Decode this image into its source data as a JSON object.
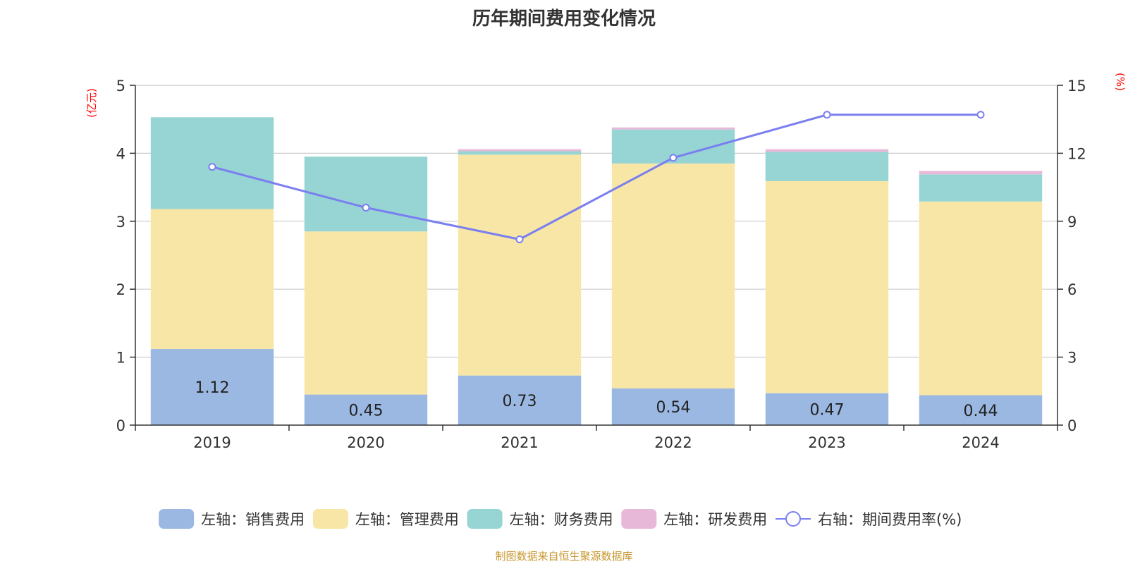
{
  "title": "历年期间费用变化情况",
  "source": "制图数据来自恒生聚源数据库",
  "colors": {
    "sales": "#9BB8E2",
    "admin": "#F7E6A6",
    "finance": "#97D4D4",
    "rd": "#E8B8D9",
    "line": "#7A7FEF",
    "axis_label": "#FF0000",
    "source": "#C7962C"
  },
  "chart_data": {
    "type": "bar",
    "stacked": true,
    "categories": [
      "2019",
      "2020",
      "2021",
      "2022",
      "2023",
      "2024"
    ],
    "series": [
      {
        "name": "左轴：销售费用",
        "key": "sales",
        "axis": "left",
        "values": [
          1.12,
          0.45,
          0.73,
          0.54,
          0.47,
          0.44
        ],
        "show_labels": true
      },
      {
        "name": "左轴：管理费用",
        "key": "admin",
        "axis": "left",
        "values": [
          2.06,
          2.4,
          3.25,
          3.31,
          3.12,
          2.85
        ]
      },
      {
        "name": "左轴：财务费用",
        "key": "finance",
        "axis": "left",
        "values": [
          1.35,
          1.1,
          0.05,
          0.5,
          0.43,
          0.4
        ]
      },
      {
        "name": "左轴：研发费用",
        "key": "rd",
        "axis": "left",
        "values": [
          0,
          0,
          0.03,
          0.03,
          0.04,
          0.05
        ]
      },
      {
        "name": "右轴：期间费用率(%)",
        "key": "line",
        "axis": "right",
        "type": "line",
        "values": [
          11.4,
          9.6,
          8.2,
          11.8,
          13.7,
          13.7
        ]
      }
    ],
    "y_left": {
      "label": "(亿元)",
      "min": 0,
      "max": 5,
      "ticks": [
        "0",
        "1",
        "2",
        "3",
        "4",
        "5"
      ]
    },
    "y_right": {
      "label": "(%)",
      "min": 0,
      "max": 15,
      "ticks": [
        "0",
        "3",
        "6",
        "9",
        "12",
        "15"
      ]
    },
    "grid": true,
    "legend_position": "bottom"
  }
}
